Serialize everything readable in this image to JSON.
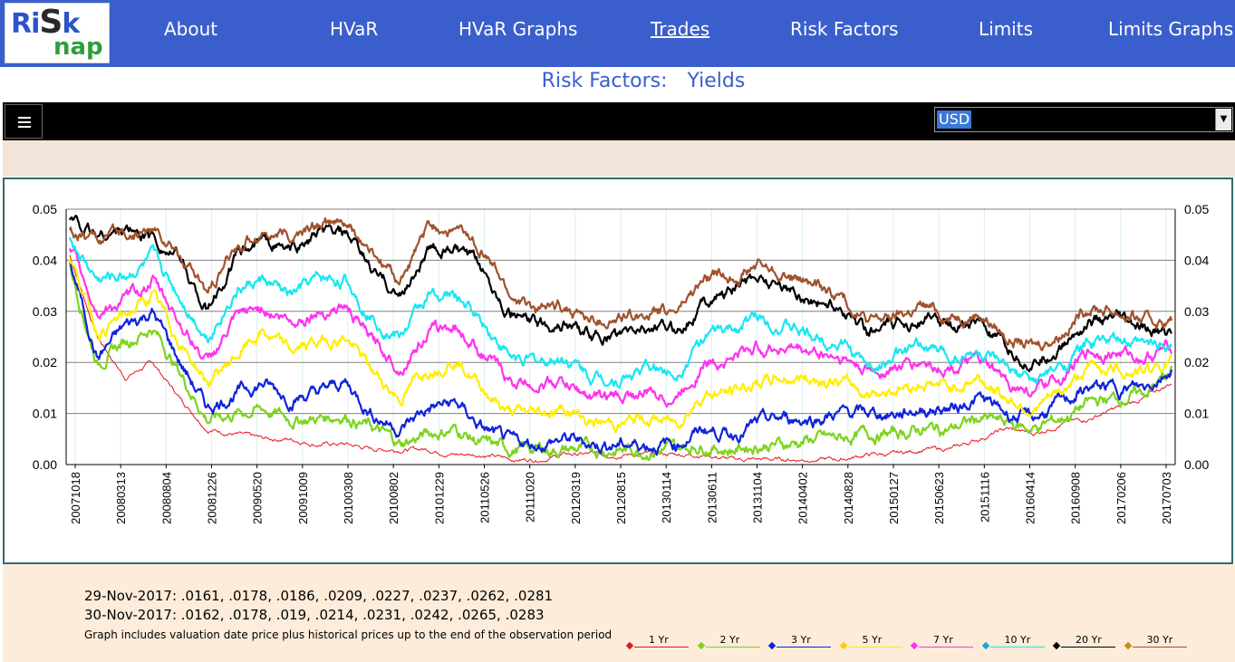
{
  "app": {
    "logo_line1": "RiSk",
    "logo_line2": "nap"
  },
  "nav": {
    "items": [
      {
        "label": "About"
      },
      {
        "label": "HVaR"
      },
      {
        "label": "HVaR Graphs"
      },
      {
        "label": "Trades"
      },
      {
        "label": "Risk Factors"
      },
      {
        "label": "Limits"
      },
      {
        "label": "Limits Graphs"
      }
    ],
    "active": "Trades"
  },
  "page": {
    "title_left": "Risk Factors:",
    "title_right": "Yields"
  },
  "currency_select": {
    "value": "USD"
  },
  "colors": {
    "nav_background": "#3a5fcd",
    "footer_background": "#fcecd9"
  },
  "chart_data": {
    "type": "line",
    "title": "",
    "xlabel": "",
    "ylabel": "",
    "ylim": [
      0,
      0.05
    ],
    "yticks": [
      "0.00",
      "0.01",
      "0.02",
      "0.03",
      "0.04",
      "0.05"
    ],
    "grid": "horizontal major lines plus light vertical lines",
    "legend_position": "bottom-right",
    "x_tick_labels": [
      "20071018",
      "20080313",
      "20080804",
      "20081226",
      "20090520",
      "20091009",
      "20100308",
      "20100802",
      "20101229",
      "20110526",
      "20111020",
      "20120319",
      "20120815",
      "20130114",
      "20130611",
      "20131104",
      "20140402",
      "20140828",
      "20150127",
      "20150623",
      "20151116",
      "20160414",
      "20160908",
      "20170206",
      "20170703"
    ],
    "x": [
      "2007-10",
      "2008-01",
      "2008-04",
      "2008-07",
      "2008-10",
      "2009-01",
      "2009-04",
      "2009-07",
      "2009-10",
      "2010-01",
      "2010-04",
      "2010-07",
      "2010-10",
      "2011-01",
      "2011-04",
      "2011-07",
      "2011-10",
      "2012-01",
      "2012-04",
      "2012-07",
      "2012-10",
      "2013-01",
      "2013-04",
      "2013-07",
      "2013-10",
      "2014-01",
      "2014-04",
      "2014-07",
      "2014-10",
      "2015-01",
      "2015-04",
      "2015-07",
      "2015-10",
      "2016-01",
      "2016-04",
      "2016-07",
      "2016-10",
      "2017-01",
      "2017-04",
      "2017-07",
      "2017-11"
    ],
    "series": [
      {
        "name": "1 Yr",
        "color": "#e8141c",
        "values": [
          0.041,
          0.025,
          0.017,
          0.02,
          0.013,
          0.007,
          0.006,
          0.005,
          0.005,
          0.004,
          0.004,
          0.003,
          0.003,
          0.003,
          0.002,
          0.002,
          0.001,
          0.001,
          0.002,
          0.002,
          0.002,
          0.002,
          0.002,
          0.002,
          0.001,
          0.001,
          0.001,
          0.001,
          0.001,
          0.002,
          0.002,
          0.003,
          0.003,
          0.005,
          0.007,
          0.006,
          0.008,
          0.009,
          0.011,
          0.013,
          0.016
        ]
      },
      {
        "name": "2 Yr",
        "color": "#7ed321",
        "values": [
          0.039,
          0.02,
          0.024,
          0.027,
          0.018,
          0.009,
          0.01,
          0.011,
          0.009,
          0.009,
          0.01,
          0.007,
          0.004,
          0.006,
          0.007,
          0.004,
          0.003,
          0.003,
          0.003,
          0.003,
          0.003,
          0.003,
          0.003,
          0.004,
          0.003,
          0.004,
          0.004,
          0.005,
          0.005,
          0.006,
          0.006,
          0.007,
          0.007,
          0.009,
          0.008,
          0.007,
          0.009,
          0.012,
          0.013,
          0.014,
          0.018
        ]
      },
      {
        "name": "3 Yr",
        "color": "#1024d8",
        "values": [
          0.04,
          0.021,
          0.027,
          0.03,
          0.02,
          0.011,
          0.014,
          0.016,
          0.013,
          0.014,
          0.016,
          0.01,
          0.007,
          0.011,
          0.012,
          0.007,
          0.004,
          0.004,
          0.005,
          0.004,
          0.004,
          0.004,
          0.004,
          0.007,
          0.006,
          0.008,
          0.009,
          0.009,
          0.01,
          0.01,
          0.01,
          0.011,
          0.011,
          0.013,
          0.01,
          0.009,
          0.012,
          0.015,
          0.015,
          0.015,
          0.019
        ]
      },
      {
        "name": "5 Yr",
        "color": "#ffee00",
        "values": [
          0.041,
          0.026,
          0.029,
          0.033,
          0.024,
          0.016,
          0.021,
          0.026,
          0.022,
          0.024,
          0.025,
          0.018,
          0.013,
          0.019,
          0.021,
          0.015,
          0.01,
          0.01,
          0.011,
          0.008,
          0.008,
          0.009,
          0.008,
          0.014,
          0.014,
          0.016,
          0.017,
          0.017,
          0.016,
          0.014,
          0.015,
          0.016,
          0.015,
          0.017,
          0.013,
          0.011,
          0.014,
          0.019,
          0.019,
          0.018,
          0.021
        ]
      },
      {
        "name": "7 Yr",
        "color": "#ff33ee",
        "values": [
          0.042,
          0.03,
          0.032,
          0.036,
          0.028,
          0.02,
          0.028,
          0.031,
          0.028,
          0.03,
          0.031,
          0.024,
          0.019,
          0.026,
          0.027,
          0.022,
          0.016,
          0.016,
          0.016,
          0.013,
          0.013,
          0.014,
          0.013,
          0.02,
          0.021,
          0.023,
          0.023,
          0.022,
          0.021,
          0.018,
          0.019,
          0.02,
          0.019,
          0.02,
          0.016,
          0.014,
          0.017,
          0.022,
          0.022,
          0.021,
          0.023
        ]
      },
      {
        "name": "10 Yr",
        "color": "#19e6f0",
        "values": [
          0.044,
          0.036,
          0.037,
          0.04,
          0.033,
          0.025,
          0.034,
          0.036,
          0.033,
          0.036,
          0.036,
          0.029,
          0.025,
          0.033,
          0.033,
          0.028,
          0.021,
          0.02,
          0.021,
          0.017,
          0.017,
          0.019,
          0.018,
          0.025,
          0.026,
          0.029,
          0.027,
          0.025,
          0.024,
          0.019,
          0.021,
          0.023,
          0.021,
          0.022,
          0.018,
          0.016,
          0.019,
          0.024,
          0.024,
          0.023,
          0.024
        ]
      },
      {
        "name": "20 Yr",
        "color": "#000000",
        "values": [
          0.048,
          0.045,
          0.046,
          0.045,
          0.04,
          0.03,
          0.04,
          0.044,
          0.042,
          0.045,
          0.045,
          0.038,
          0.033,
          0.042,
          0.042,
          0.038,
          0.03,
          0.027,
          0.028,
          0.025,
          0.025,
          0.027,
          0.026,
          0.032,
          0.034,
          0.037,
          0.035,
          0.032,
          0.031,
          0.026,
          0.027,
          0.029,
          0.027,
          0.028,
          0.022,
          0.02,
          0.023,
          0.028,
          0.028,
          0.026,
          0.026
        ]
      },
      {
        "name": "30 Yr",
        "color": "#a0522d",
        "values": [
          0.046,
          0.044,
          0.045,
          0.046,
          0.041,
          0.033,
          0.042,
          0.046,
          0.044,
          0.047,
          0.047,
          0.041,
          0.036,
          0.046,
          0.046,
          0.042,
          0.033,
          0.03,
          0.031,
          0.028,
          0.028,
          0.03,
          0.03,
          0.036,
          0.037,
          0.039,
          0.037,
          0.035,
          0.033,
          0.028,
          0.029,
          0.031,
          0.029,
          0.03,
          0.025,
          0.023,
          0.026,
          0.031,
          0.03,
          0.028,
          0.028
        ]
      }
    ]
  },
  "footer": {
    "line1": "29-Nov-2017: .0161, .0178, .0186, .0209, .0227, .0237, .0262, .0281",
    "line2": "30-Nov-2017: .0162, .0178, .019, .0214, .0231, .0242, .0265, .0283",
    "note": "Graph includes valuation date price plus historical prices up to the end of the observation period"
  },
  "legend": [
    {
      "label": "1 Yr",
      "color": "#e8141c",
      "marker": "#e8141c"
    },
    {
      "label": "2 Yr",
      "color": "#7ed321",
      "marker": "#7ed321"
    },
    {
      "label": "3 Yr",
      "color": "#1024d8",
      "marker": "#1024d8"
    },
    {
      "label": "5 Yr",
      "color": "#ffee00",
      "marker": "#ffcc00"
    },
    {
      "label": "7 Yr",
      "color": "#ff33ee",
      "marker": "#ff33ee"
    },
    {
      "label": "10 Yr",
      "color": "#19e6f0",
      "marker": "#19a3e0"
    },
    {
      "label": "20 Yr",
      "color": "#000000",
      "marker": "#000000"
    },
    {
      "label": "30 Yr",
      "color": "#a0522d",
      "marker": "#c68a16"
    }
  ]
}
